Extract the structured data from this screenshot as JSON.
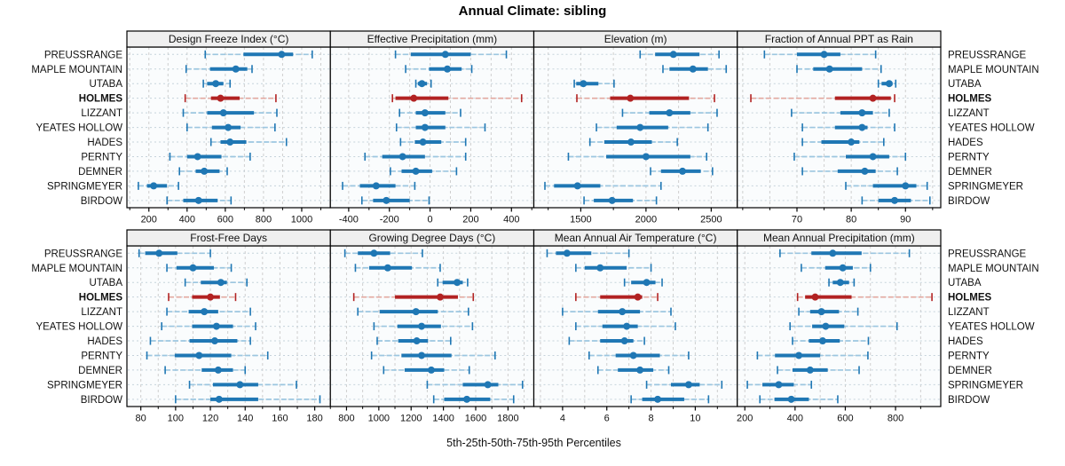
{
  "title": "Annual Climate: sibling",
  "footer": "5th-25th-50th-75th-95th Percentiles",
  "percentile_labels": [
    "5th",
    "25th",
    "50th",
    "75th",
    "95th"
  ],
  "stations": [
    {
      "label": "PREUSSRANGE",
      "highlight": false
    },
    {
      "label": "MAPLE MOUNTAIN",
      "highlight": false
    },
    {
      "label": "UTABA",
      "highlight": false
    },
    {
      "label": "HOLMES",
      "highlight": true
    },
    {
      "label": "LIZZANT",
      "highlight": false
    },
    {
      "label": "YEATES HOLLOW",
      "highlight": false
    },
    {
      "label": "HADES",
      "highlight": false
    },
    {
      "label": "PERNTY",
      "highlight": false
    },
    {
      "label": "DEMNER",
      "highlight": false
    },
    {
      "label": "SPRINGMEYER",
      "highlight": false
    },
    {
      "label": "BIRDOW",
      "highlight": false
    }
  ],
  "colors": {
    "blue": "#1f77b4",
    "blue_light": "#9cc6e0",
    "red": "#b22222",
    "red_light": "#e3a8a0",
    "strip_bg": "#efefef",
    "panel_bg": "#fafcfd",
    "grid_v": "#cfcfcf",
    "grid_row": "#c6d3db",
    "axis": "#000000",
    "text": "#111111"
  },
  "chart_data": [
    {
      "type": "error-bar-dotplot",
      "row": 0,
      "col": 0,
      "title": "Design Freeze Index (°C)",
      "xlim": [
        85,
        1150
      ],
      "ticks": [
        200,
        400,
        600,
        800,
        1000
      ],
      "minor_step": 100,
      "series": [
        {
          "station": "PREUSSRANGE",
          "p": [
            495,
            695,
            895,
            955,
            1055
          ]
        },
        {
          "station": "MAPLE MOUNTAIN",
          "p": [
            395,
            520,
            655,
            715,
            740
          ]
        },
        {
          "station": "UTABA",
          "p": [
            485,
            505,
            550,
            590,
            625
          ]
        },
        {
          "station": "HOLMES",
          "p": [
            390,
            525,
            575,
            675,
            865
          ]
        },
        {
          "station": "LIZZANT",
          "p": [
            380,
            505,
            590,
            750,
            870
          ]
        },
        {
          "station": "YEATES HOLLOW",
          "p": [
            400,
            530,
            615,
            680,
            860
          ]
        },
        {
          "station": "HADES",
          "p": [
            525,
            575,
            625,
            710,
            920
          ]
        },
        {
          "station": "PERNTY",
          "p": [
            310,
            400,
            455,
            580,
            730
          ]
        },
        {
          "station": "DEMNER",
          "p": [
            360,
            445,
            490,
            570,
            610
          ]
        },
        {
          "station": "SPRINGMEYER",
          "p": [
            145,
            190,
            225,
            295,
            355
          ]
        },
        {
          "station": "BIRDOW",
          "p": [
            295,
            380,
            460,
            560,
            630
          ]
        }
      ]
    },
    {
      "type": "error-bar-dotplot",
      "row": 0,
      "col": 1,
      "title": "Effective Precipitation (mm)",
      "xlim": [
        -490,
        510
      ],
      "ticks": [
        -400,
        -200,
        0,
        200,
        400
      ],
      "minor_step": 100,
      "series": [
        {
          "station": "PREUSSRANGE",
          "p": [
            -170,
            -95,
            75,
            200,
            375
          ]
        },
        {
          "station": "MAPLE MOUNTAIN",
          "p": [
            -120,
            -5,
            85,
            155,
            205
          ]
        },
        {
          "station": "UTABA",
          "p": [
            -70,
            -60,
            -40,
            -15,
            5
          ]
        },
        {
          "station": "HOLMES",
          "p": [
            -185,
            -170,
            -80,
            90,
            450
          ]
        },
        {
          "station": "LIZZANT",
          "p": [
            -150,
            -70,
            -25,
            75,
            150
          ]
        },
        {
          "station": "YEATES HOLLOW",
          "p": [
            -165,
            -70,
            -25,
            75,
            270
          ]
        },
        {
          "station": "HADES",
          "p": [
            -145,
            -75,
            -35,
            55,
            175
          ]
        },
        {
          "station": "PERNTY",
          "p": [
            -320,
            -235,
            -135,
            -25,
            175
          ]
        },
        {
          "station": "DEMNER",
          "p": [
            -195,
            -140,
            -70,
            10,
            130
          ]
        },
        {
          "station": "SPRINGMEYER",
          "p": [
            -430,
            -345,
            -265,
            -170,
            -75
          ]
        },
        {
          "station": "BIRDOW",
          "p": [
            -335,
            -280,
            -215,
            -100,
            -5
          ]
        }
      ]
    },
    {
      "type": "error-bar-dotplot",
      "row": 0,
      "col": 2,
      "title": "Elevation (m)",
      "xlim": [
        1140,
        2700
      ],
      "ticks": [
        1500,
        2000,
        2500
      ],
      "minor_step": 250,
      "series": [
        {
          "station": "PREUSSRANGE",
          "p": [
            1955,
            2070,
            2210,
            2410,
            2560
          ]
        },
        {
          "station": "MAPLE MOUNTAIN",
          "p": [
            2130,
            2180,
            2360,
            2475,
            2615
          ]
        },
        {
          "station": "UTABA",
          "p": [
            1450,
            1465,
            1520,
            1635,
            1755
          ]
        },
        {
          "station": "HOLMES",
          "p": [
            1470,
            1725,
            1880,
            2330,
            2525
          ]
        },
        {
          "station": "LIZZANT",
          "p": [
            1820,
            2025,
            2180,
            2340,
            2545
          ]
        },
        {
          "station": "YEATES HOLLOW",
          "p": [
            1620,
            1775,
            1955,
            2170,
            2475
          ]
        },
        {
          "station": "HADES",
          "p": [
            1570,
            1680,
            1885,
            2045,
            2240
          ]
        },
        {
          "station": "PERNTY",
          "p": [
            1405,
            1695,
            2000,
            2340,
            2465
          ]
        },
        {
          "station": "DEMNER",
          "p": [
            2035,
            2115,
            2280,
            2420,
            2510
          ]
        },
        {
          "station": "SPRINGMEYER",
          "p": [
            1225,
            1295,
            1475,
            1650,
            2115
          ]
        },
        {
          "station": "BIRDOW",
          "p": [
            1525,
            1600,
            1740,
            1900,
            2080
          ]
        }
      ]
    },
    {
      "type": "error-bar-dotplot",
      "row": 0,
      "col": 3,
      "title": "Fraction of Annual PPT as Rain",
      "xlim": [
        59,
        96.5
      ],
      "ticks": [
        70,
        80,
        90
      ],
      "minor_step": 5,
      "series": [
        {
          "station": "PREUSSRANGE",
          "p": [
            64,
            70,
            75,
            78,
            84.5
          ]
        },
        {
          "station": "MAPLE MOUNTAIN",
          "p": [
            70,
            73,
            76,
            82,
            85.5
          ]
        },
        {
          "station": "UTABA",
          "p": [
            85,
            85.6,
            87,
            87.6,
            88.2
          ]
        },
        {
          "station": "HOLMES",
          "p": [
            61.5,
            77,
            84,
            87.3,
            88
          ]
        },
        {
          "station": "LIZZANT",
          "p": [
            69,
            78,
            82,
            84,
            87
          ]
        },
        {
          "station": "YEATES HOLLOW",
          "p": [
            71,
            77,
            82,
            83,
            88
          ]
        },
        {
          "station": "HADES",
          "p": [
            71,
            74.5,
            80,
            81.5,
            86
          ]
        },
        {
          "station": "PERNTY",
          "p": [
            69.5,
            79,
            84,
            87,
            90
          ]
        },
        {
          "station": "DEMNER",
          "p": [
            71,
            77.5,
            82.5,
            84.5,
            88.5
          ]
        },
        {
          "station": "SPRINGMEYER",
          "p": [
            79,
            84,
            90,
            92,
            94
          ]
        },
        {
          "station": "BIRDOW",
          "p": [
            82,
            85,
            88,
            91,
            94.5
          ]
        }
      ]
    },
    {
      "type": "error-bar-dotplot",
      "row": 1,
      "col": 0,
      "title": "Frost-Free Days",
      "xlim": [
        72,
        189
      ],
      "ticks": [
        80,
        100,
        120,
        140,
        160,
        180
      ],
      "minor_step": 10,
      "series": [
        {
          "station": "PREUSSRANGE",
          "p": [
            79,
            82.5,
            90.5,
            101,
            120
          ]
        },
        {
          "station": "MAPLE MOUNTAIN",
          "p": [
            95,
            100.5,
            110,
            122,
            132
          ]
        },
        {
          "station": "UTABA",
          "p": [
            105.5,
            114.5,
            126,
            129.5,
            141
          ]
        },
        {
          "station": "HOLMES",
          "p": [
            96,
            109.5,
            120,
            125.5,
            134.5
          ]
        },
        {
          "station": "LIZZANT",
          "p": [
            95,
            107.5,
            116.5,
            124.5,
            143
          ]
        },
        {
          "station": "YEATES HOLLOW",
          "p": [
            92,
            109.5,
            123.5,
            133,
            146
          ]
        },
        {
          "station": "HADES",
          "p": [
            85.5,
            108,
            122.5,
            135.5,
            143
          ]
        },
        {
          "station": "PERNTY",
          "p": [
            83.5,
            99.5,
            113.5,
            132,
            153
          ]
        },
        {
          "station": "DEMNER",
          "p": [
            94,
            115,
            124.5,
            133,
            140
          ]
        },
        {
          "station": "SPRINGMEYER",
          "p": [
            108,
            121.5,
            137,
            147.5,
            169.5
          ]
        },
        {
          "station": "BIRDOW",
          "p": [
            100,
            120,
            125,
            147.5,
            183
          ]
        }
      ]
    },
    {
      "type": "error-bar-dotplot",
      "row": 1,
      "col": 1,
      "title": "Growing Degree Days (°C)",
      "xlim": [
        700,
        1960
      ],
      "ticks": [
        800,
        1000,
        1200,
        1400,
        1600,
        1800
      ],
      "minor_step": 100,
      "series": [
        {
          "station": "PREUSSRANGE",
          "p": [
            790,
            870,
            970,
            1070,
            1270
          ]
        },
        {
          "station": "MAPLE MOUNTAIN",
          "p": [
            855,
            940,
            1055,
            1205,
            1380
          ]
        },
        {
          "station": "UTABA",
          "p": [
            1365,
            1395,
            1485,
            1520,
            1550
          ]
        },
        {
          "station": "HOLMES",
          "p": [
            845,
            1100,
            1380,
            1490,
            1585
          ]
        },
        {
          "station": "LIZZANT",
          "p": [
            870,
            1005,
            1230,
            1365,
            1555
          ]
        },
        {
          "station": "YEATES HOLLOW",
          "p": [
            970,
            1115,
            1265,
            1385,
            1580
          ]
        },
        {
          "station": "HADES",
          "p": [
            990,
            1120,
            1235,
            1305,
            1445
          ]
        },
        {
          "station": "PERNTY",
          "p": [
            955,
            1140,
            1265,
            1450,
            1720
          ]
        },
        {
          "station": "DEMNER",
          "p": [
            1030,
            1160,
            1325,
            1405,
            1560
          ]
        },
        {
          "station": "SPRINGMEYER",
          "p": [
            1300,
            1520,
            1675,
            1740,
            1890
          ]
        },
        {
          "station": "BIRDOW",
          "p": [
            1340,
            1405,
            1545,
            1690,
            1835
          ]
        }
      ]
    },
    {
      "type": "error-bar-dotplot",
      "row": 1,
      "col": 2,
      "title": "Mean Annual Air Temperature (°C)",
      "xlim": [
        2.7,
        11.9
      ],
      "ticks": [
        4,
        6,
        8,
        10
      ],
      "minor_step": 1,
      "series": [
        {
          "station": "PREUSSRANGE",
          "p": [
            3.3,
            3.7,
            4.2,
            5.3,
            7.0
          ]
        },
        {
          "station": "MAPLE MOUNTAIN",
          "p": [
            4.6,
            5.0,
            5.7,
            6.9,
            8.0
          ]
        },
        {
          "station": "UTABA",
          "p": [
            6.8,
            7.1,
            7.8,
            8.2,
            8.5
          ]
        },
        {
          "station": "HOLMES",
          "p": [
            4.6,
            5.7,
            7.4,
            7.6,
            8.3
          ]
        },
        {
          "station": "LIZZANT",
          "p": [
            4.0,
            5.6,
            6.7,
            7.5,
            8.9
          ]
        },
        {
          "station": "YEATES HOLLOW",
          "p": [
            4.6,
            5.8,
            6.9,
            7.4,
            9.1
          ]
        },
        {
          "station": "HADES",
          "p": [
            4.3,
            5.7,
            6.8,
            7.2,
            7.7
          ]
        },
        {
          "station": "PERNTY",
          "p": [
            5.2,
            6.4,
            7.2,
            8.4,
            9.7
          ]
        },
        {
          "station": "DEMNER",
          "p": [
            5.6,
            6.5,
            7.5,
            8.1,
            8.8
          ]
        },
        {
          "station": "SPRINGMEYER",
          "p": [
            7.8,
            8.9,
            9.7,
            10.2,
            11.2
          ]
        },
        {
          "station": "BIRDOW",
          "p": [
            7.1,
            7.6,
            8.3,
            9.5,
            10.6
          ]
        }
      ]
    },
    {
      "type": "error-bar-dotplot",
      "row": 1,
      "col": 3,
      "title": "Mean Annual Precipitation (mm)",
      "xlim": [
        170,
        980
      ],
      "ticks": [
        200,
        400,
        600,
        800
      ],
      "minor_step": 100,
      "series": [
        {
          "station": "PREUSSRANGE",
          "p": [
            340,
            465,
            550,
            665,
            855
          ]
        },
        {
          "station": "MAPLE MOUNTAIN",
          "p": [
            425,
            520,
            590,
            630,
            700
          ]
        },
        {
          "station": "UTABA",
          "p": [
            535,
            550,
            580,
            615,
            635
          ]
        },
        {
          "station": "HOLMES",
          "p": [
            410,
            440,
            480,
            625,
            945
          ]
        },
        {
          "station": "LIZZANT",
          "p": [
            415,
            460,
            505,
            575,
            650
          ]
        },
        {
          "station": "YEATES HOLLOW",
          "p": [
            380,
            468,
            522,
            596,
            806
          ]
        },
        {
          "station": "HADES",
          "p": [
            390,
            455,
            510,
            578,
            692
          ]
        },
        {
          "station": "PERNTY",
          "p": [
            250,
            320,
            415,
            500,
            690
          ]
        },
        {
          "station": "DEMNER",
          "p": [
            330,
            390,
            460,
            530,
            655
          ]
        },
        {
          "station": "SPRINGMEYER",
          "p": [
            210,
            270,
            335,
            395,
            465
          ]
        },
        {
          "station": "BIRDOW",
          "p": [
            260,
            318,
            385,
            455,
            570
          ]
        }
      ]
    }
  ]
}
